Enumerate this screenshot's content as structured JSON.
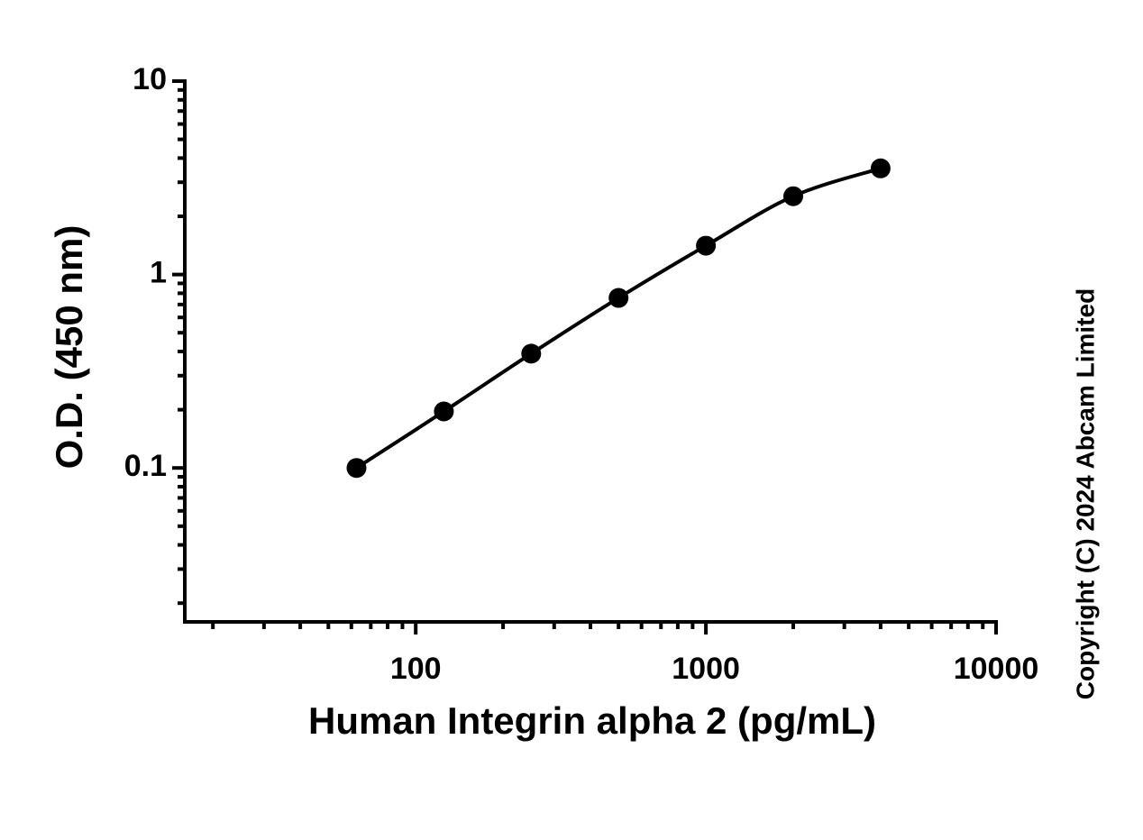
{
  "chart_data": {
    "type": "scatter",
    "x_label": "Human Integrin alpha 2 (pg/mL)",
    "y_label": "O.D. (450 nm)",
    "annotation": "Copyright (C) 2024 Abcam Limited",
    "x": [
      62.5,
      125,
      250,
      500,
      1000,
      2000,
      4000
    ],
    "series": [
      {
        "color": "#000000",
        "values": [
          0.1,
          0.196,
          0.39,
          0.757,
          1.41,
          2.54,
          3.54
        ]
      }
    ],
    "xlim": [
      16,
      10000
    ],
    "ylim": [
      0.016,
      10
    ],
    "xticks": [
      100,
      1000,
      10000
    ],
    "yticks": [
      0.1,
      1,
      10
    ],
    "xminorticks": [
      20,
      30,
      40,
      50,
      60,
      70,
      80,
      90,
      200,
      300,
      400,
      500,
      600,
      700,
      800,
      900,
      2000,
      3000,
      4000,
      5000,
      6000,
      7000,
      8000,
      9000
    ],
    "yminorticks": [
      0.02,
      0.03,
      0.04,
      0.05,
      0.06,
      0.07,
      0.08,
      0.09,
      0.2,
      0.3,
      0.4,
      0.5,
      0.6,
      0.7,
      0.8,
      0.9,
      2,
      3,
      4,
      5,
      6,
      7,
      8,
      9
    ],
    "xscale": "log",
    "yscale": "log",
    "grid": false
  }
}
